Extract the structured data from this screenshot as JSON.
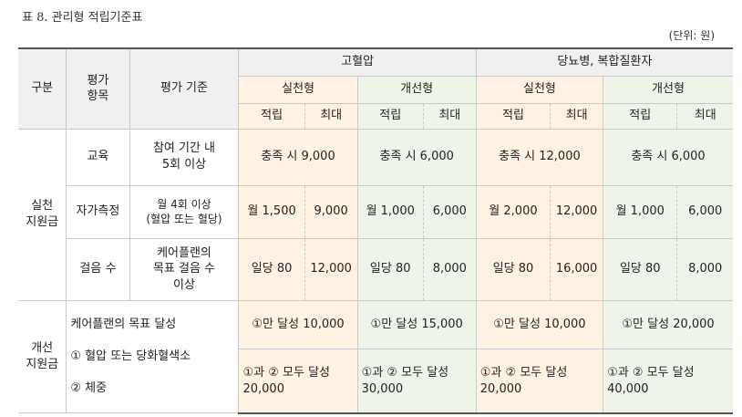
{
  "caption": "표 8. 관리형 적립기준표",
  "unit": "(단위: 원)",
  "header": {
    "category": "구분",
    "item": "평가\n항목",
    "criteria": "평가 기준",
    "group1": "고혈압",
    "group2": "당뇨병, 복합질환자",
    "practice": "실천형",
    "improve": "개선형",
    "accrue": "적립",
    "max": "최대"
  },
  "practice_section": {
    "label": "실천\n지원금",
    "rows": [
      {
        "item": "교육",
        "criteria": "참여 기간 내\n5회 이상",
        "hp_practice": "충족 시 9,000",
        "hp_improve": "충족 시 6,000",
        "dm_practice": "충족 시 12,000",
        "dm_improve": "충족 시 6,000"
      },
      {
        "item": "자가측정",
        "criteria": "월 4회 이상\n(혈압 또는 혈당)",
        "values": [
          "월 1,500",
          "9,000",
          "월 1,000",
          "6,000",
          "월 2,000",
          "12,000",
          "월 1,000",
          "6,000"
        ]
      },
      {
        "item": "걸음 수",
        "criteria": "케어플랜의\n목표 걸음 수\n이상",
        "values": [
          "일당 80",
          "12,000",
          "일당 80",
          "8,000",
          "일당 80",
          "16,000",
          "일당 80",
          "8,000"
        ]
      }
    ]
  },
  "improve_section": {
    "label": "개선\n지원금",
    "criteria_line1": "케어플랜의 목표 달성",
    "criteria_line2": "① 혈압 또는 당화혈색소",
    "criteria_line3": "② 체중",
    "row1": [
      "①만 달성 10,000",
      "①만 달성 15,000",
      "①만 달성 10,000",
      "①만 달성 20,000"
    ],
    "row2": [
      "①과 ② 모두 달성\n20,000",
      "①과 ② 모두 달성\n30,000",
      "①과 ② 모두 달성\n20,000",
      "①과 ② 모두 달성\n40,000"
    ]
  }
}
